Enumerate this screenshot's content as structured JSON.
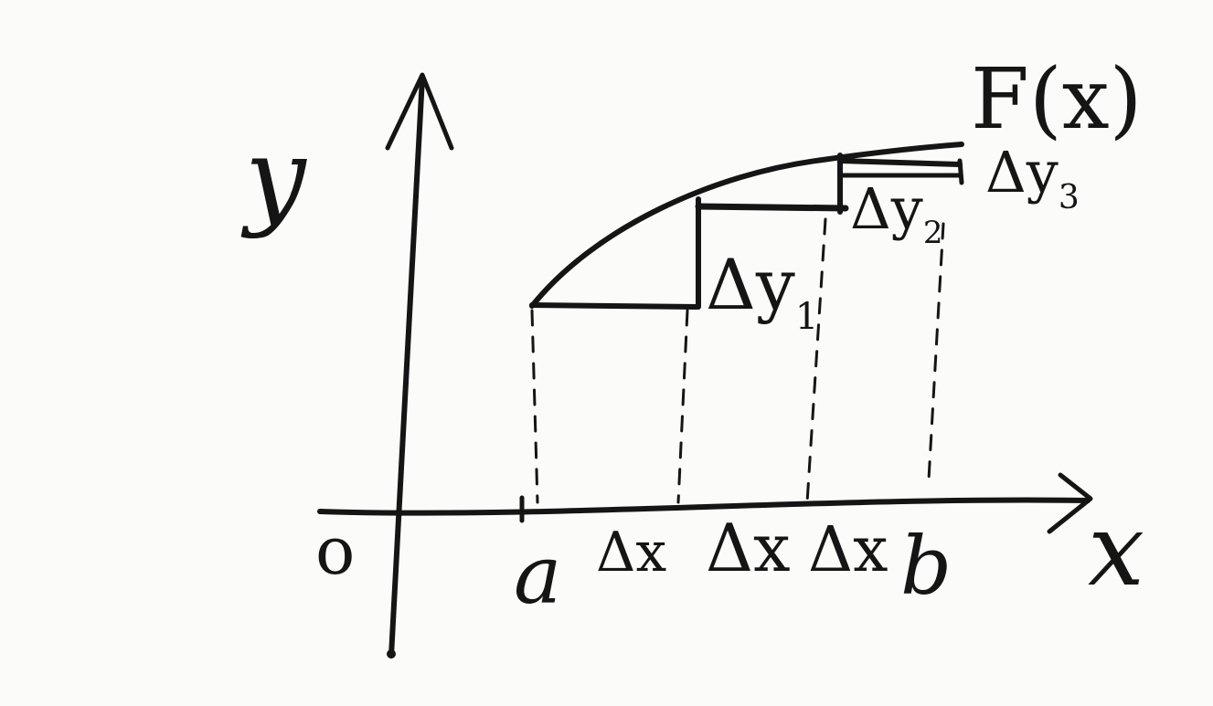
{
  "diagram": {
    "y_axis_label": "y",
    "x_axis_label": "x",
    "origin_label": "o",
    "curve_label": "F(x)",
    "x_marks": [
      "a",
      "Δx",
      "Δx",
      "Δx",
      "b"
    ],
    "increment_labels": [
      {
        "base": "Δy",
        "sub": "1"
      },
      {
        "base": "Δy",
        "sub": "2"
      },
      {
        "base": "Δy",
        "sub": "3"
      }
    ]
  }
}
